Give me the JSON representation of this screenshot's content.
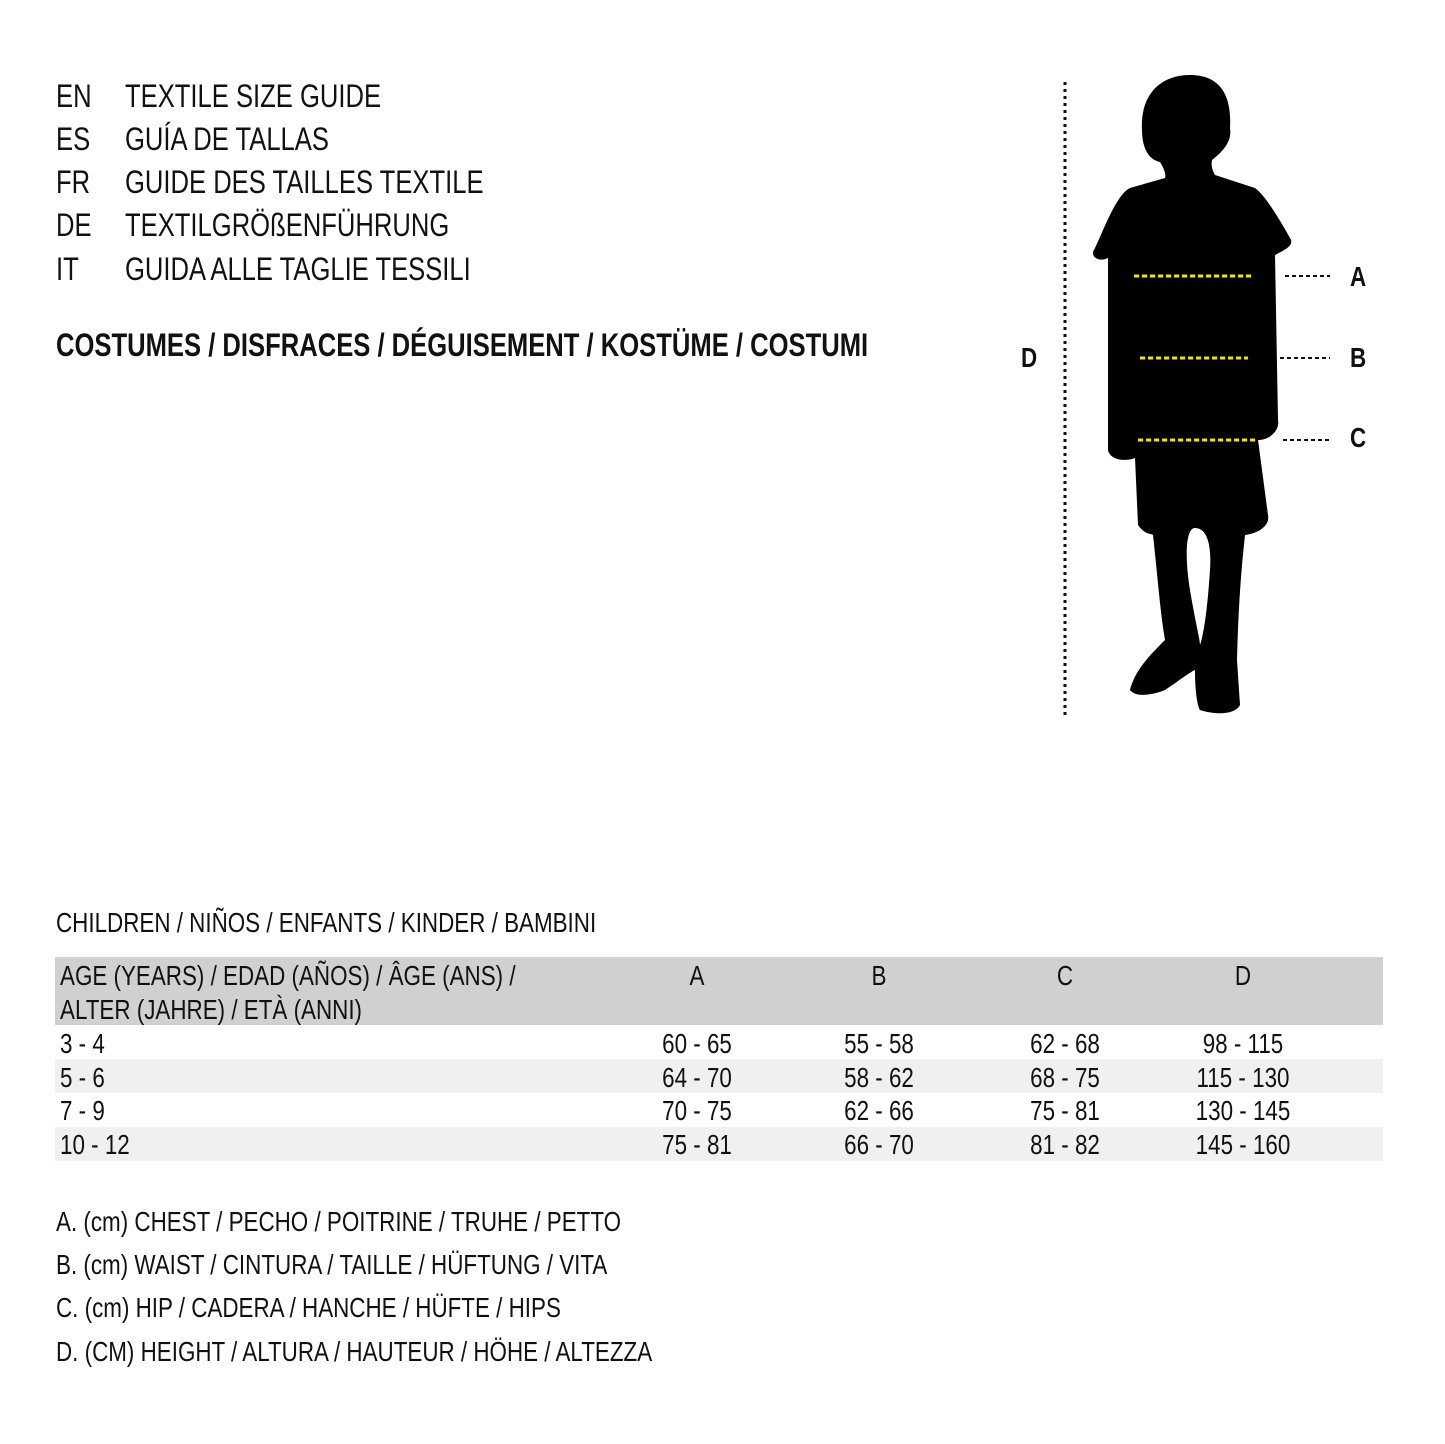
{
  "guide_titles": [
    {
      "code": "EN",
      "title": "TEXTILE SIZE GUIDE"
    },
    {
      "code": "ES",
      "title": "GUÍA DE TALLAS"
    },
    {
      "code": "FR",
      "title": "GUIDE DES TAILLES TEXTILE"
    },
    {
      "code": "DE",
      "title": "TEXTILGRÖßENFÜHRUNG"
    },
    {
      "code": "IT",
      "title": "GUIDA ALLE TAGLIE TESSILI"
    }
  ],
  "category": "COSTUMES / DISFRACES / DÉGUISEMENT / KOSTÜME / COSTUMI",
  "figure": {
    "labels": {
      "a": "A",
      "b": "B",
      "c": "C",
      "d": "D"
    },
    "measure_line_color": "#f2e600",
    "silhouette_color": "#000000"
  },
  "table": {
    "caption": "CHILDREN / NIÑOS / ENFANTS / KINDER / BAMBINI",
    "header": {
      "age_line1": "AGE (YEARS) / EDAD (AÑOS) / ÂGE (ANS) /",
      "age_line2": "ALTER (JAHRE) / ETÀ (ANNI)",
      "cols": [
        "A",
        "B",
        "C",
        "D"
      ]
    },
    "rows": [
      {
        "age": "3 - 4",
        "a": "60 - 65",
        "b": "55 - 58",
        "c": "62 - 68",
        "d": "98 - 115"
      },
      {
        "age": "5 - 6",
        "a": "64 - 70",
        "b": "58 - 62",
        "c": "68 - 75",
        "d": "115 - 130"
      },
      {
        "age": "7 - 9",
        "a": "70 - 75",
        "b": "62 - 66",
        "c": "75 - 81",
        "d": "130 - 145"
      },
      {
        "age": "10 - 12",
        "a": "75 - 81",
        "b": "66 - 70",
        "c": "81 - 82",
        "d": "145 - 160"
      }
    ],
    "header_bg": "#d0d0d0",
    "stripe_bg": "#f0f0f0"
  },
  "legend": [
    "A. (cm) CHEST / PECHO / POITRINE / TRUHE / PETTO",
    "B. (cm) WAIST / CINTURA / TAILLE / HÜFTUNG / VITA",
    "C. (cm) HIP / CADERA / HANCHE / HÜFTE / HIPS",
    "D. (CM) HEIGHT / ALTURA / HAUTEUR / HÖHE / ALTEZZA"
  ]
}
